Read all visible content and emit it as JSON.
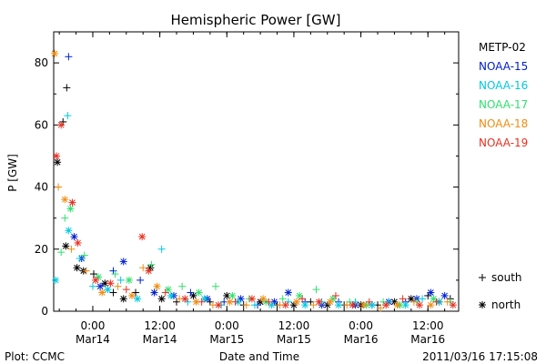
{
  "chart_data": {
    "type": "scatter",
    "title": "Hemispheric Power [GW]",
    "xlabel": "Date and Time",
    "ylabel": "P [GW]",
    "xlim": [
      "2011-03-13T17:00",
      "2011-03-16T17:30"
    ],
    "ylim": [
      0,
      90
    ],
    "y_ticks": [
      0,
      20,
      40,
      60,
      80
    ],
    "x_tick_labels": [
      {
        "at": "2011-03-14T00:00",
        "time": "0:00",
        "date": "Mar14"
      },
      {
        "at": "2011-03-14T12:00",
        "time": "12:00",
        "date": "Mar14"
      },
      {
        "at": "2011-03-15T00:00",
        "time": "0:00",
        "date": "Mar15"
      },
      {
        "at": "2011-03-15T12:00",
        "time": "12:00",
        "date": "Mar15"
      },
      {
        "at": "2011-03-16T00:00",
        "time": "0:00",
        "date": "Mar16"
      },
      {
        "at": "2011-03-16T12:00",
        "time": "12:00",
        "date": "Mar16"
      }
    ],
    "legend_position": "right",
    "marker_legend": [
      {
        "symbol": "+",
        "label": "south"
      },
      {
        "symbol": "*",
        "label": "north"
      }
    ],
    "series": [
      {
        "name": "METP-02",
        "color": "#000000",
        "points": [
          [
            "2011-03-13T17:40",
            48,
            "north"
          ],
          [
            "2011-03-13T18:40",
            61,
            "south"
          ],
          [
            "2011-03-13T19:20",
            72,
            "south"
          ],
          [
            "2011-03-13T19:10",
            21,
            "north"
          ],
          [
            "2011-03-13T21:10",
            14,
            "north"
          ],
          [
            "2011-03-13T22:20",
            13,
            "north"
          ],
          [
            "2011-03-14T00:10",
            12,
            "south"
          ],
          [
            "2011-03-14T02:10",
            9,
            "north"
          ],
          [
            "2011-03-14T03:40",
            6,
            "south"
          ],
          [
            "2011-03-14T05:30",
            4,
            "north"
          ],
          [
            "2011-03-14T07:40",
            6,
            "south"
          ],
          [
            "2011-03-14T10:20",
            14,
            "north"
          ],
          [
            "2011-03-14T12:20",
            4,
            "north"
          ],
          [
            "2011-03-14T15:00",
            3,
            "south"
          ],
          [
            "2011-03-14T18:00",
            5,
            "north"
          ],
          [
            "2011-03-14T21:00",
            3,
            "south"
          ],
          [
            "2011-03-15T00:00",
            5,
            "north"
          ],
          [
            "2011-03-15T03:00",
            2,
            "south"
          ],
          [
            "2011-03-15T06:00",
            3,
            "north"
          ],
          [
            "2011-03-15T09:00",
            2,
            "south"
          ],
          [
            "2011-03-15T12:00",
            2,
            "north"
          ],
          [
            "2011-03-15T15:00",
            3,
            "south"
          ],
          [
            "2011-03-15T18:00",
            2,
            "north"
          ],
          [
            "2011-03-15T21:00",
            2,
            "south"
          ],
          [
            "2011-03-16T00:00",
            2,
            "north"
          ],
          [
            "2011-03-16T03:00",
            2,
            "south"
          ],
          [
            "2011-03-16T06:00",
            3,
            "north"
          ],
          [
            "2011-03-16T09:00",
            4,
            "north"
          ],
          [
            "2011-03-16T12:00",
            5,
            "south"
          ],
          [
            "2011-03-16T14:00",
            3,
            "north"
          ],
          [
            "2011-03-16T16:00",
            4,
            "south"
          ]
        ]
      },
      {
        "name": "NOAA-15",
        "color": "#0020d0",
        "points": [
          [
            "2011-03-13T19:40",
            82,
            "south"
          ],
          [
            "2011-03-13T20:40",
            24,
            "north"
          ],
          [
            "2011-03-13T22:00",
            17,
            "north"
          ],
          [
            "2011-03-14T01:20",
            8,
            "north"
          ],
          [
            "2011-03-14T03:40",
            13,
            "south"
          ],
          [
            "2011-03-14T05:30",
            16,
            "north"
          ],
          [
            "2011-03-14T08:30",
            10,
            "south"
          ],
          [
            "2011-03-14T11:00",
            6,
            "north"
          ],
          [
            "2011-03-14T14:30",
            5,
            "north"
          ],
          [
            "2011-03-14T17:30",
            6,
            "south"
          ],
          [
            "2011-03-14T20:30",
            4,
            "north"
          ],
          [
            "2011-03-14T23:30",
            3,
            "south"
          ],
          [
            "2011-03-15T02:30",
            4,
            "north"
          ],
          [
            "2011-03-15T05:30",
            2,
            "south"
          ],
          [
            "2011-03-15T08:30",
            3,
            "north"
          ],
          [
            "2011-03-15T11:00",
            6,
            "north"
          ],
          [
            "2011-03-15T14:00",
            3,
            "south"
          ],
          [
            "2011-03-15T17:00",
            2,
            "north"
          ],
          [
            "2011-03-15T20:00",
            3,
            "south"
          ],
          [
            "2011-03-15T23:00",
            2,
            "north"
          ],
          [
            "2011-03-16T02:00",
            2,
            "south"
          ],
          [
            "2011-03-16T05:00",
            3,
            "north"
          ],
          [
            "2011-03-16T08:00",
            3,
            "south"
          ],
          [
            "2011-03-16T10:00",
            4,
            "north"
          ],
          [
            "2011-03-16T12:30",
            6,
            "north"
          ],
          [
            "2011-03-16T15:00",
            5,
            "north"
          ]
        ]
      },
      {
        "name": "NOAA-16",
        "color": "#00c8e0",
        "points": [
          [
            "2011-03-13T17:20",
            10,
            "north"
          ],
          [
            "2011-03-13T19:30",
            63,
            "south"
          ],
          [
            "2011-03-13T19:40",
            26,
            "north"
          ],
          [
            "2011-03-13T21:40",
            17,
            "south"
          ],
          [
            "2011-03-14T00:00",
            8,
            "south"
          ],
          [
            "2011-03-14T02:40",
            7,
            "north"
          ],
          [
            "2011-03-14T05:00",
            10,
            "south"
          ],
          [
            "2011-03-14T08:00",
            4,
            "north"
          ],
          [
            "2011-03-14T12:20",
            20,
            "south"
          ],
          [
            "2011-03-14T14:00",
            5,
            "north"
          ],
          [
            "2011-03-14T17:00",
            3,
            "south"
          ],
          [
            "2011-03-14T20:00",
            4,
            "north"
          ],
          [
            "2011-03-14T23:00",
            2,
            "south"
          ],
          [
            "2011-03-15T02:00",
            3,
            "north"
          ],
          [
            "2011-03-15T05:00",
            2,
            "south"
          ],
          [
            "2011-03-15T08:00",
            2,
            "north"
          ],
          [
            "2011-03-15T11:00",
            3,
            "south"
          ],
          [
            "2011-03-15T14:00",
            2,
            "north"
          ],
          [
            "2011-03-15T17:00",
            3,
            "south"
          ],
          [
            "2011-03-15T20:00",
            2,
            "north"
          ],
          [
            "2011-03-15T23:00",
            3,
            "south"
          ],
          [
            "2011-03-16T02:00",
            2,
            "north"
          ],
          [
            "2011-03-16T05:00",
            3,
            "south"
          ],
          [
            "2011-03-16T08:00",
            2,
            "north"
          ],
          [
            "2011-03-16T11:00",
            4,
            "south"
          ],
          [
            "2011-03-16T14:00",
            3,
            "north"
          ]
        ]
      },
      {
        "name": "NOAA-17",
        "color": "#30e070",
        "points": [
          [
            "2011-03-13T18:20",
            19,
            "south"
          ],
          [
            "2011-03-13T19:00",
            30,
            "south"
          ],
          [
            "2011-03-13T20:00",
            33,
            "north"
          ],
          [
            "2011-03-13T22:30",
            18,
            "south"
          ],
          [
            "2011-03-14T01:00",
            11,
            "north"
          ],
          [
            "2011-03-14T04:00",
            12,
            "south"
          ],
          [
            "2011-03-14T06:30",
            10,
            "north"
          ],
          [
            "2011-03-14T10:30",
            15,
            "south"
          ],
          [
            "2011-03-14T13:30",
            7,
            "north"
          ],
          [
            "2011-03-14T16:00",
            8,
            "south"
          ],
          [
            "2011-03-14T19:00",
            6,
            "north"
          ],
          [
            "2011-03-14T22:00",
            8,
            "south"
          ],
          [
            "2011-03-15T01:00",
            5,
            "north"
          ],
          [
            "2011-03-15T04:00",
            4,
            "south"
          ],
          [
            "2011-03-15T07:00",
            3,
            "north"
          ],
          [
            "2011-03-15T10:00",
            4,
            "south"
          ],
          [
            "2011-03-15T13:00",
            5,
            "north"
          ],
          [
            "2011-03-15T16:00",
            7,
            "south"
          ],
          [
            "2011-03-15T19:00",
            4,
            "north"
          ],
          [
            "2011-03-15T22:00",
            3,
            "south"
          ],
          [
            "2011-03-16T01:00",
            2,
            "north"
          ],
          [
            "2011-03-16T04:00",
            3,
            "south"
          ],
          [
            "2011-03-16T07:00",
            2,
            "north"
          ],
          [
            "2011-03-16T10:00",
            3,
            "south"
          ],
          [
            "2011-03-16T13:00",
            4,
            "north"
          ],
          [
            "2011-03-16T16:00",
            3,
            "south"
          ]
        ]
      },
      {
        "name": "NOAA-18",
        "color": "#f08c10",
        "points": [
          [
            "2011-03-13T17:10",
            83,
            "north"
          ],
          [
            "2011-03-13T17:50",
            40,
            "south"
          ],
          [
            "2011-03-13T19:00",
            36,
            "north"
          ],
          [
            "2011-03-13T20:10",
            20,
            "south"
          ],
          [
            "2011-03-13T22:50",
            13,
            "south"
          ],
          [
            "2011-03-14T01:40",
            6,
            "north"
          ],
          [
            "2011-03-14T04:30",
            8,
            "south"
          ],
          [
            "2011-03-14T07:00",
            5,
            "north"
          ],
          [
            "2011-03-14T09:00",
            14,
            "south"
          ],
          [
            "2011-03-14T11:30",
            8,
            "north"
          ],
          [
            "2011-03-14T15:30",
            4,
            "south"
          ],
          [
            "2011-03-14T18:30",
            3,
            "north"
          ],
          [
            "2011-03-14T21:30",
            2,
            "south"
          ],
          [
            "2011-03-15T00:30",
            3,
            "north"
          ],
          [
            "2011-03-15T03:30",
            2,
            "south"
          ],
          [
            "2011-03-15T06:30",
            4,
            "north"
          ],
          [
            "2011-03-15T09:30",
            2,
            "south"
          ],
          [
            "2011-03-15T12:30",
            3,
            "north"
          ],
          [
            "2011-03-15T15:30",
            2,
            "south"
          ],
          [
            "2011-03-15T18:30",
            3,
            "north"
          ],
          [
            "2011-03-15T21:30",
            2,
            "south"
          ],
          [
            "2011-03-16T00:30",
            2,
            "north"
          ],
          [
            "2011-03-16T03:30",
            1,
            "south"
          ],
          [
            "2011-03-16T06:30",
            2,
            "north"
          ],
          [
            "2011-03-16T09:30",
            3,
            "south"
          ],
          [
            "2011-03-16T12:30",
            2,
            "north"
          ],
          [
            "2011-03-16T15:30",
            3,
            "south"
          ]
        ]
      },
      {
        "name": "NOAA-19",
        "color": "#e83020",
        "points": [
          [
            "2011-03-13T17:30",
            50,
            "north"
          ],
          [
            "2011-03-13T18:20",
            60,
            "north"
          ],
          [
            "2011-03-13T20:20",
            35,
            "north"
          ],
          [
            "2011-03-13T21:20",
            22,
            "north"
          ],
          [
            "2011-03-14T00:30",
            10,
            "north"
          ],
          [
            "2011-03-14T03:10",
            9,
            "north"
          ],
          [
            "2011-03-14T06:00",
            7,
            "south"
          ],
          [
            "2011-03-14T08:50",
            24,
            "north"
          ],
          [
            "2011-03-14T10:00",
            13,
            "north"
          ],
          [
            "2011-03-14T13:00",
            6,
            "south"
          ],
          [
            "2011-03-14T16:30",
            4,
            "north"
          ],
          [
            "2011-03-14T19:30",
            3,
            "south"
          ],
          [
            "2011-03-14T22:30",
            2,
            "north"
          ],
          [
            "2011-03-15T01:30",
            3,
            "south"
          ],
          [
            "2011-03-15T04:30",
            4,
            "north"
          ],
          [
            "2011-03-15T07:30",
            3,
            "south"
          ],
          [
            "2011-03-15T10:30",
            2,
            "north"
          ],
          [
            "2011-03-15T13:30",
            4,
            "south"
          ],
          [
            "2011-03-15T16:30",
            3,
            "north"
          ],
          [
            "2011-03-15T19:30",
            5,
            "south"
          ],
          [
            "2011-03-15T22:30",
            2,
            "north"
          ],
          [
            "2011-03-16T01:30",
            3,
            "south"
          ],
          [
            "2011-03-16T04:30",
            2,
            "north"
          ],
          [
            "2011-03-16T07:30",
            4,
            "south"
          ],
          [
            "2011-03-16T10:30",
            2,
            "north"
          ],
          [
            "2011-03-16T13:30",
            3,
            "south"
          ],
          [
            "2011-03-16T16:30",
            2,
            "north"
          ]
        ]
      }
    ]
  },
  "footer": {
    "plot_credit": "Plot: CCMC",
    "timestamp": "2011/03/16 17:15:08"
  }
}
